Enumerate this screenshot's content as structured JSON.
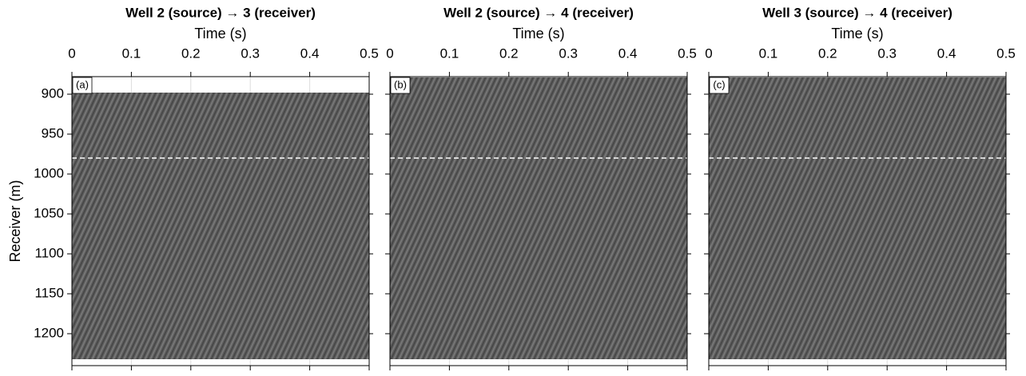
{
  "chart_data": [
    {
      "type": "image",
      "title": "Well 2 (source) → 3 (receiver)",
      "x_label": "Time (s)",
      "y_label": "Receiver (m)",
      "panel_label": "(a)",
      "xlim": [
        0,
        0.5
      ],
      "xticks": [
        0,
        0.1,
        0.2,
        0.3,
        0.4,
        0.5
      ],
      "ylim": [
        1240,
        878
      ],
      "yticks": [
        900,
        950,
        1000,
        1050,
        1100,
        1150,
        1200
      ],
      "image_extent": [
        898,
        1232
      ],
      "hline": 980,
      "grid": true
    },
    {
      "type": "image",
      "title": "Well 2 (source) → 4 (receiver)",
      "x_label": "Time (s)",
      "panel_label": "(b)",
      "xlim": [
        0,
        0.5
      ],
      "xticks": [
        0,
        0.1,
        0.2,
        0.3,
        0.4,
        0.5
      ],
      "ylim": [
        1240,
        878
      ],
      "yticks": [
        900,
        950,
        1000,
        1050,
        1100,
        1150,
        1200
      ],
      "image_extent": [
        879,
        1232
      ],
      "hline": 980,
      "grid": true
    },
    {
      "type": "image",
      "title": "Well 3 (source) → 4 (receiver)",
      "x_label": "Time (s)",
      "panel_label": "(c)",
      "xlim": [
        0,
        0.5
      ],
      "xticks": [
        0,
        0.1,
        0.2,
        0.3,
        0.4,
        0.5
      ],
      "ylim": [
        1240,
        878
      ],
      "yticks": [
        900,
        950,
        1000,
        1050,
        1100,
        1150,
        1200
      ],
      "image_extent": [
        879,
        1232
      ],
      "hline": 980,
      "grid": true
    }
  ]
}
